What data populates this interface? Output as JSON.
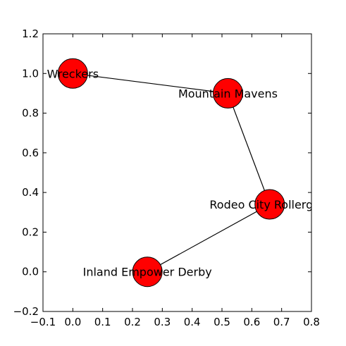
{
  "chart_data": {
    "type": "scatter",
    "title": "",
    "xlabel": "",
    "ylabel": "",
    "xlim": [
      -0.1,
      0.8
    ],
    "ylim": [
      -0.2,
      1.2
    ],
    "x_ticks": [
      "−0.1",
      "0.0",
      "0.1",
      "0.2",
      "0.3",
      "0.4",
      "0.5",
      "0.6",
      "0.7",
      "0.8"
    ],
    "y_ticks": [
      "−0.2",
      "0.0",
      "0.2",
      "0.4",
      "0.6",
      "0.8",
      "1.0",
      "1.2"
    ],
    "grid": false,
    "nodes": [
      {
        "label": "Wreckers",
        "x": 0.0,
        "y": 1.0
      },
      {
        "label": "Mountain Mavens",
        "x": 0.52,
        "y": 0.9
      },
      {
        "label": "Rodeo City Rollergirls",
        "x": 0.66,
        "y": 0.34
      },
      {
        "label": "Inland Empower Derby",
        "x": 0.25,
        "y": 0.0
      }
    ],
    "edges": [
      [
        "Wreckers",
        "Mountain Mavens"
      ],
      [
        "Mountain Mavens",
        "Rodeo City Rollergirls"
      ],
      [
        "Rodeo City Rollergirls",
        "Inland Empower Derby"
      ]
    ],
    "node_color": "#ff0000",
    "edge_color": "#000000"
  }
}
